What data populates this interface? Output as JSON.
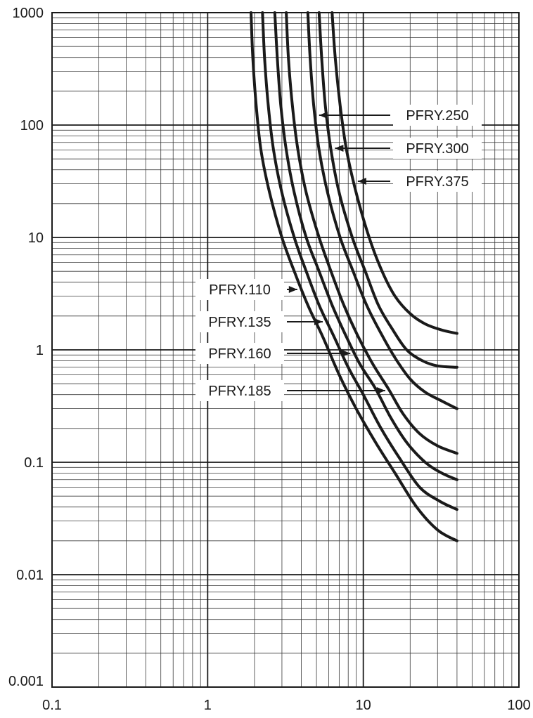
{
  "chart_data": {
    "type": "line",
    "title": "",
    "xlabel": "",
    "ylabel": "",
    "x_scale": "log",
    "y_scale": "log",
    "xlim": [
      0.1,
      100
    ],
    "ylim": [
      0.001,
      1000
    ],
    "grid": true,
    "x_ticks": [
      {
        "value": 0.1,
        "label": "0.1"
      },
      {
        "value": 1,
        "label": "1"
      },
      {
        "value": 10,
        "label": "10"
      },
      {
        "value": 100,
        "label": "100"
      }
    ],
    "y_ticks": [
      {
        "value": 1000,
        "label": "1000"
      },
      {
        "value": 100,
        "label": "100"
      },
      {
        "value": 10,
        "label": "10"
      },
      {
        "value": 1,
        "label": "1"
      },
      {
        "value": 0.1,
        "label": "0.1"
      },
      {
        "value": 0.01,
        "label": "0.01"
      },
      {
        "value": 0.001,
        "label": "0.001"
      }
    ],
    "series": [
      {
        "name": "PFRY.110",
        "label_side": "left",
        "x": [
          1.9,
          1.95,
          2.05,
          2.2,
          2.5,
          3.0,
          3.6,
          4.4,
          5.5,
          7,
          9,
          12,
          16,
          22,
          30,
          40
        ],
        "y": [
          1000,
          400,
          150,
          60,
          25,
          10,
          5,
          2.5,
          1.3,
          0.6,
          0.3,
          0.15,
          0.08,
          0.04,
          0.025,
          0.02
        ]
      },
      {
        "name": "PFRY.135",
        "label_side": "left",
        "x": [
          2.25,
          2.32,
          2.45,
          2.65,
          3.0,
          3.6,
          4.3,
          5.2,
          6.5,
          8,
          10,
          13,
          17,
          23,
          31,
          40
        ],
        "y": [
          1000,
          400,
          150,
          60,
          25,
          10,
          5,
          2.5,
          1.3,
          0.7,
          0.4,
          0.2,
          0.11,
          0.06,
          0.045,
          0.038
        ]
      },
      {
        "name": "PFRY.160",
        "label_side": "left",
        "x": [
          2.7,
          2.8,
          2.95,
          3.2,
          3.6,
          4.3,
          5.2,
          6.3,
          7.8,
          9.5,
          12,
          15,
          19,
          25,
          32,
          40
        ],
        "y": [
          1000,
          400,
          150,
          60,
          25,
          10,
          5,
          2.5,
          1.3,
          0.75,
          0.45,
          0.25,
          0.15,
          0.1,
          0.08,
          0.07
        ]
      },
      {
        "name": "PFRY.185",
        "label_side": "left",
        "x": [
          3.2,
          3.3,
          3.5,
          3.8,
          4.3,
          5.2,
          6.2,
          7.5,
          9.3,
          11.5,
          14.5,
          18,
          23,
          30,
          40
        ],
        "y": [
          1000,
          400,
          150,
          60,
          25,
          10,
          5,
          2.5,
          1.3,
          0.75,
          0.45,
          0.27,
          0.18,
          0.14,
          0.12
        ]
      },
      {
        "name": "PFRY.250",
        "label_side": "right",
        "x": [
          4.4,
          4.55,
          4.8,
          5.2,
          5.9,
          7.1,
          8.6,
          10.5,
          13,
          16,
          20,
          25,
          32,
          40
        ],
        "y": [
          1000,
          400,
          150,
          60,
          25,
          10,
          5,
          2.5,
          1.4,
          0.85,
          0.55,
          0.42,
          0.35,
          0.3
        ]
      },
      {
        "name": "PFRY.300",
        "label_side": "right",
        "x": [
          5.2,
          5.4,
          5.7,
          6.2,
          7.0,
          8.5,
          10.3,
          12.5,
          15.5,
          19,
          24,
          30,
          40
        ],
        "y": [
          1000,
          400,
          150,
          60,
          25,
          10,
          5,
          2.5,
          1.5,
          1.0,
          0.8,
          0.72,
          0.7
        ]
      },
      {
        "name": "PFRY.375",
        "label_side": "right",
        "x": [
          6.3,
          6.6,
          7.1,
          7.8,
          9.0,
          10.9,
          13.2,
          16,
          20,
          25,
          32,
          40
        ],
        "y": [
          1000,
          400,
          150,
          60,
          25,
          10,
          5,
          3,
          2.1,
          1.7,
          1.5,
          1.4
        ]
      }
    ]
  }
}
